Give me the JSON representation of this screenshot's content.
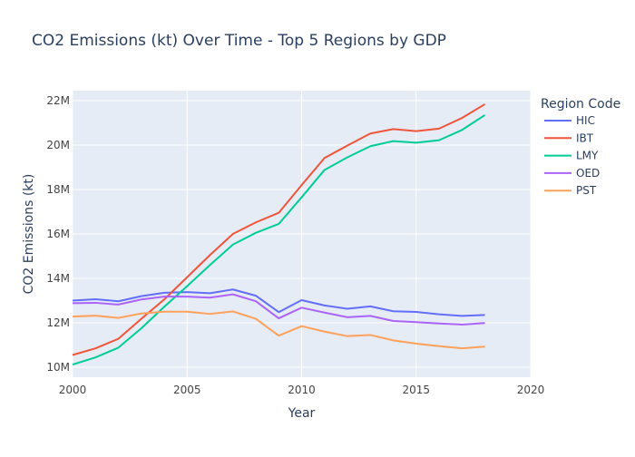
{
  "chart_data": {
    "type": "line",
    "title": "CO2 Emissions (kt) Over Time - Top 5 Regions by GDP",
    "xlabel": "Year",
    "ylabel": "CO2 Emissions (kt)",
    "xlim": [
      2000,
      2020
    ],
    "ylim": [
      9.55,
      22.45
    ],
    "x_ticks": [
      2000,
      2005,
      2010,
      2015,
      2020
    ],
    "y_ticks": [
      10,
      12,
      14,
      16,
      18,
      20,
      22
    ],
    "y_tick_labels": [
      "10M",
      "12M",
      "14M",
      "16M",
      "18M",
      "20M",
      "22M"
    ],
    "y_unit": "millions of kt",
    "grid": true,
    "legend": {
      "title": "Region Code",
      "position": "right"
    },
    "x": [
      2000,
      2001,
      2002,
      2003,
      2004,
      2005,
      2006,
      2007,
      2008,
      2009,
      2010,
      2011,
      2012,
      2013,
      2014,
      2015,
      2016,
      2017,
      2018
    ],
    "series": [
      {
        "name": "HIC",
        "color": "#636efa",
        "values": [
          13.0,
          13.06,
          12.97,
          13.2,
          13.35,
          13.38,
          13.33,
          13.5,
          13.22,
          12.48,
          13.02,
          12.78,
          12.63,
          12.74,
          12.52,
          12.49,
          12.38,
          12.31,
          12.35
        ]
      },
      {
        "name": "IBT",
        "color": "#ef553b",
        "values": [
          10.55,
          10.85,
          11.28,
          12.18,
          13.05,
          14.05,
          15.05,
          16.0,
          16.52,
          16.95,
          18.2,
          19.42,
          19.98,
          20.52,
          20.72,
          20.63,
          20.74,
          21.22,
          21.84
        ]
      },
      {
        "name": "LMY",
        "color": "#00cc96",
        "values": [
          10.12,
          10.44,
          10.88,
          11.75,
          12.72,
          13.65,
          14.6,
          15.52,
          16.05,
          16.45,
          17.65,
          18.88,
          19.45,
          19.95,
          20.18,
          20.11,
          20.22,
          20.68,
          21.35
        ]
      },
      {
        "name": "OED",
        "color": "#ab63fa",
        "values": [
          12.88,
          12.9,
          12.82,
          13.05,
          13.18,
          13.18,
          13.13,
          13.28,
          12.97,
          12.2,
          12.68,
          12.46,
          12.25,
          12.31,
          12.08,
          12.03,
          11.97,
          11.92,
          11.99
        ]
      },
      {
        "name": "PST",
        "color": "#ffa15a",
        "values": [
          12.28,
          12.32,
          12.22,
          12.42,
          12.5,
          12.5,
          12.4,
          12.51,
          12.18,
          11.42,
          11.85,
          11.6,
          11.4,
          11.45,
          11.21,
          11.06,
          10.95,
          10.85,
          10.93
        ]
      }
    ]
  },
  "colors": {
    "plot_background": "#e5ecf6",
    "gridline": "#ffffff",
    "text": "#2a3f5f",
    "tick_text": "#444444"
  }
}
